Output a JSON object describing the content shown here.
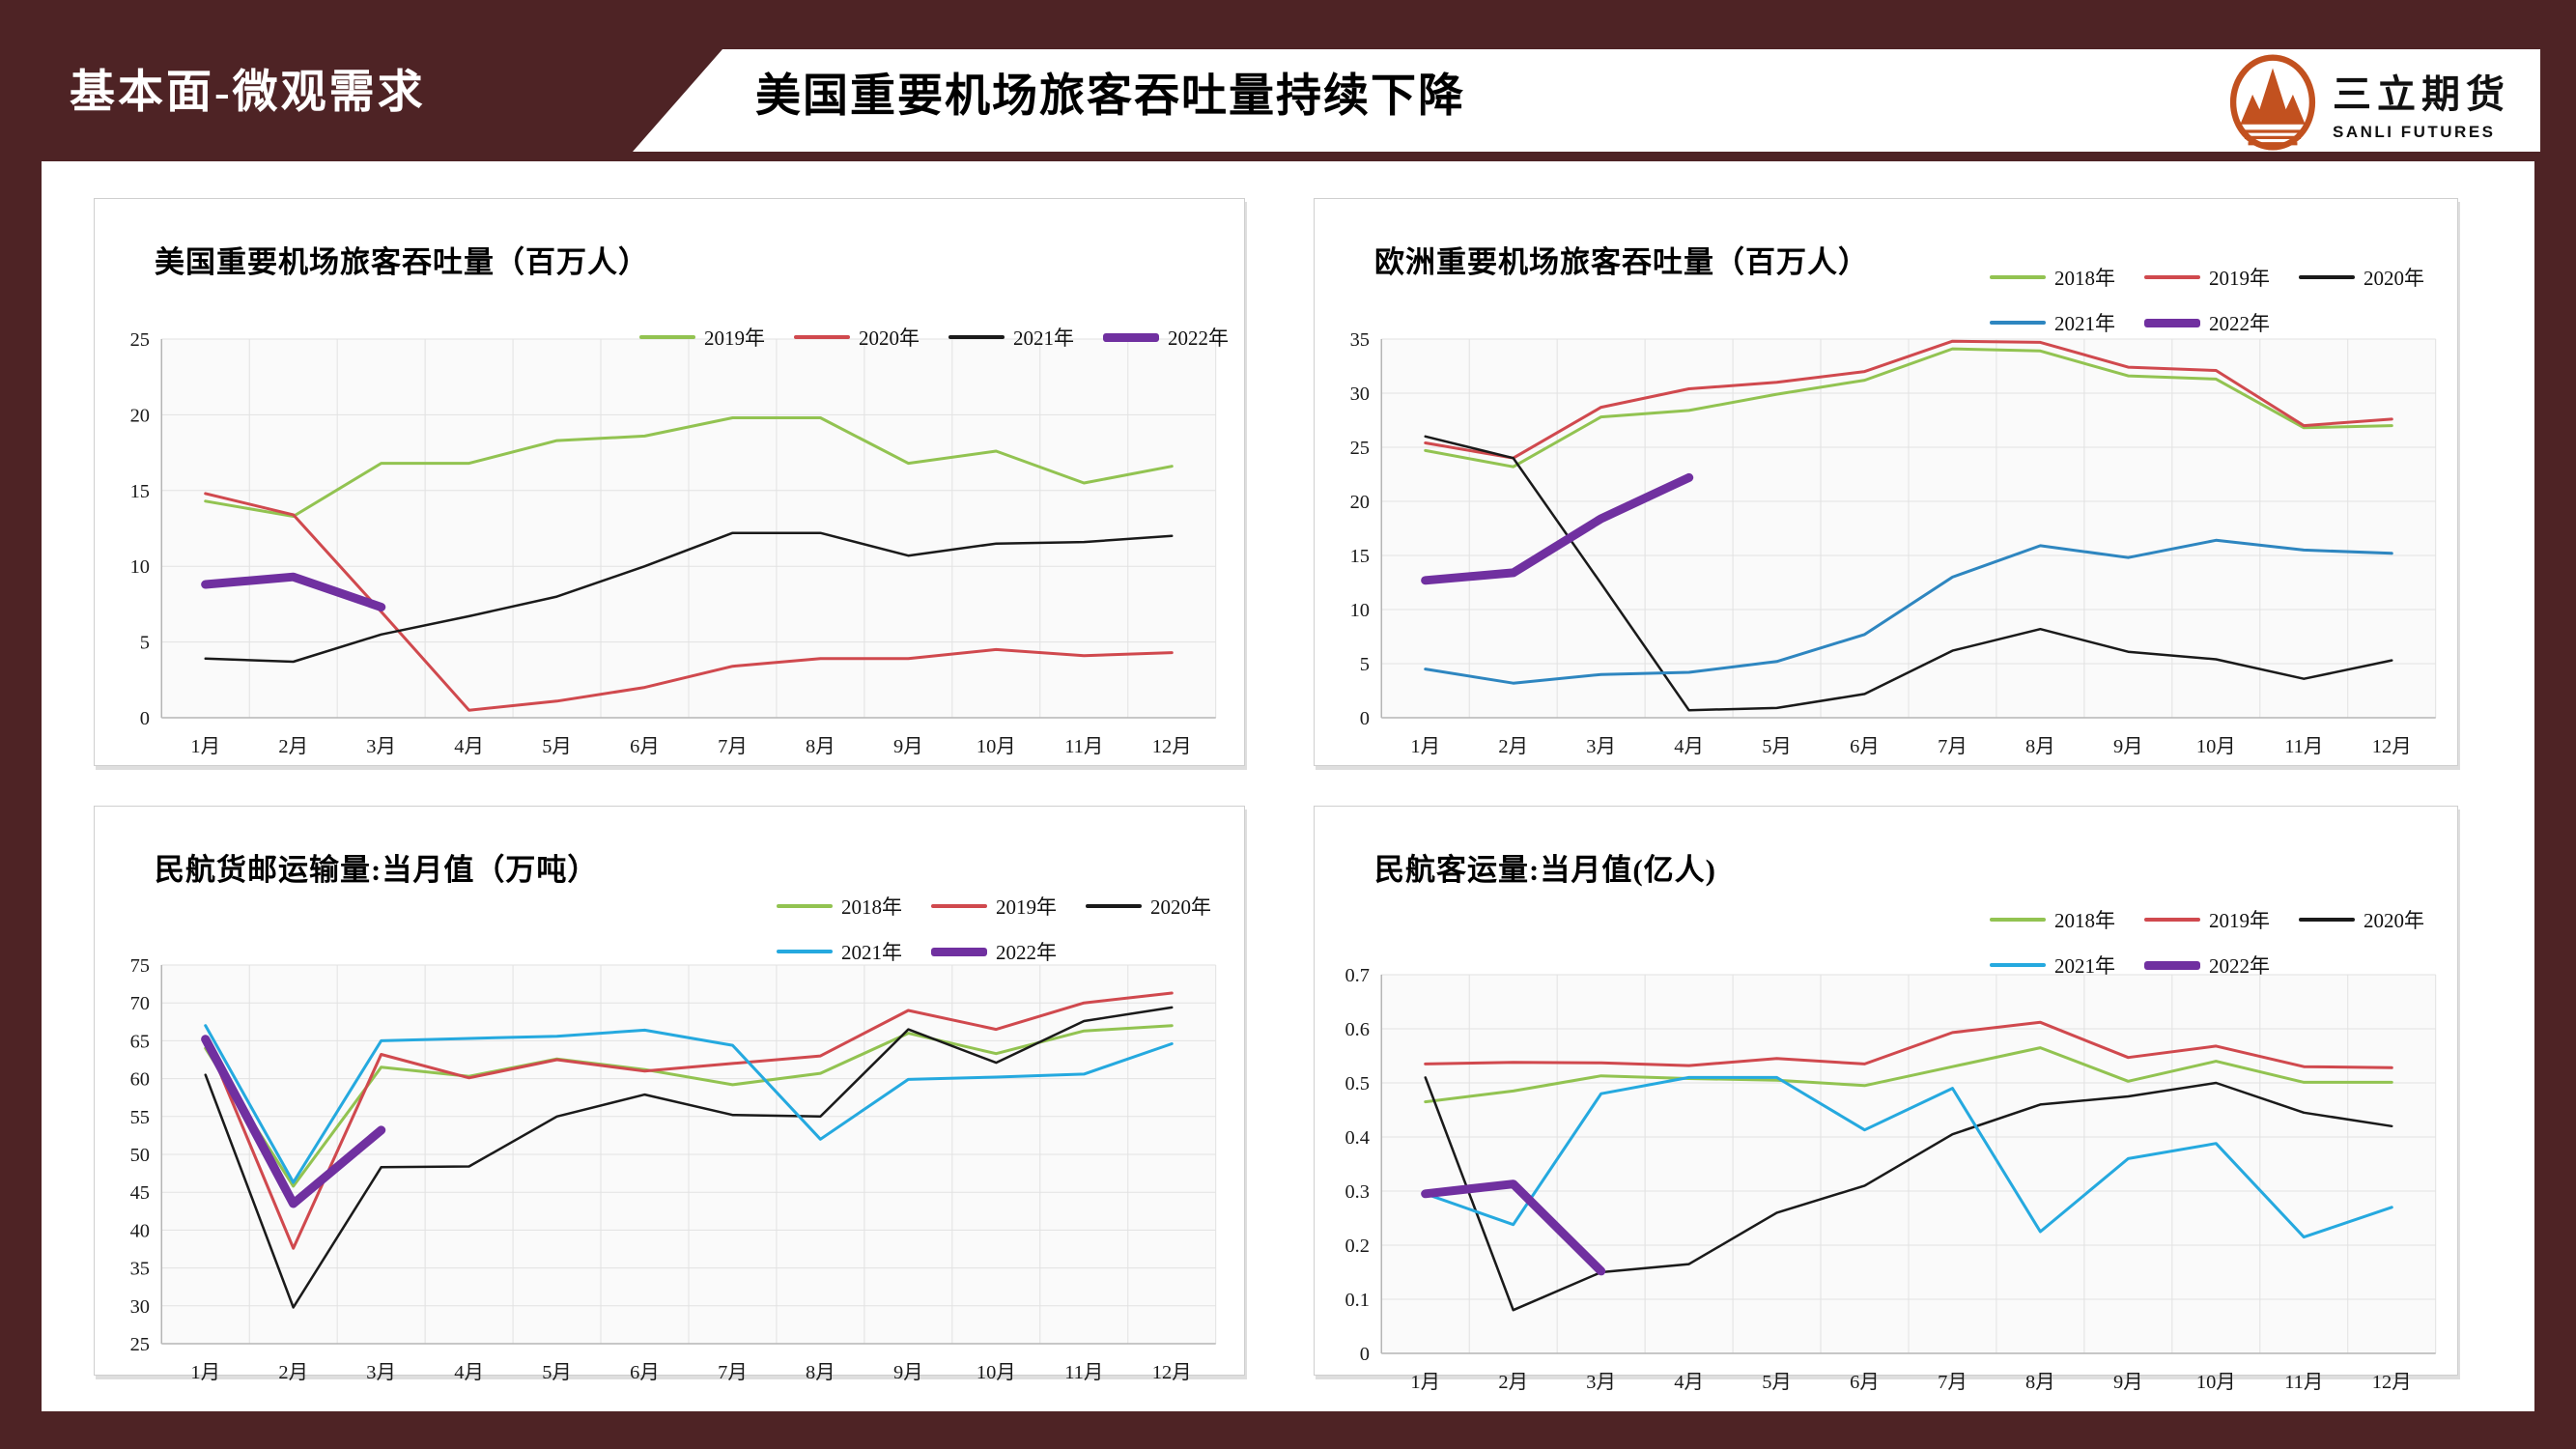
{
  "theme": {
    "frame_maroon": "#4E2325",
    "logo_orange": "#C2511F",
    "plot_bg": "#FAFAFA",
    "grid_line": "#E2E2E2",
    "axis_line": "#B5B5B5"
  },
  "header": {
    "section_tag": "基本面-微观需求",
    "title": "美国重要机场旅客吞吐量持续下降",
    "logo": {
      "cn": "三立期货",
      "en": "SANLI FUTURES"
    }
  },
  "chart_data": [
    {
      "type": "line",
      "title": "美国重要机场旅客吞吐量（百万人）",
      "categories": [
        "1月",
        "2月",
        "3月",
        "4月",
        "5月",
        "6月",
        "7月",
        "8月",
        "9月",
        "10月",
        "11月",
        "12月"
      ],
      "ylim": [
        0,
        25
      ],
      "ystep": 5,
      "grid": true,
      "legend_position": "top-right-inside",
      "legend_rows": [
        [
          "2019年",
          "2020年",
          "2021年",
          "2022年"
        ]
      ],
      "series": [
        {
          "name": "2019年",
          "color": "#92C351",
          "width": 3,
          "values": [
            14.3,
            13.3,
            16.8,
            16.8,
            18.3,
            18.6,
            19.8,
            19.8,
            16.8,
            17.6,
            15.5,
            16.6
          ]
        },
        {
          "name": "2020年",
          "color": "#D0494E",
          "width": 3,
          "values": [
            14.8,
            13.4,
            7.0,
            0.5,
            1.1,
            2.0,
            3.4,
            3.9,
            3.9,
            4.5,
            4.1,
            4.3
          ]
        },
        {
          "name": "2021年",
          "color": "#1A1A1A",
          "width": 2.5,
          "values": [
            3.9,
            3.7,
            5.5,
            6.7,
            8.0,
            10.0,
            12.2,
            12.2,
            10.7,
            11.5,
            11.6,
            12.0
          ]
        },
        {
          "name": "2022年",
          "color": "#7030A0",
          "width": 9,
          "values": [
            8.8,
            9.3,
            7.3,
            null,
            null,
            null,
            null,
            null,
            null,
            null,
            null,
            null
          ]
        }
      ]
    },
    {
      "type": "line",
      "title": "欧洲重要机场旅客吞吐量（百万人）",
      "categories": [
        "1月",
        "2月",
        "3月",
        "4月",
        "5月",
        "6月",
        "7月",
        "8月",
        "9月",
        "10月",
        "11月",
        "12月"
      ],
      "ylim": [
        0,
        35
      ],
      "ystep": 5,
      "grid": true,
      "legend_position": "top-right-above",
      "legend_rows": [
        [
          "2018年",
          "2019年",
          "2020年"
        ],
        [
          "2021年",
          "2022年"
        ]
      ],
      "series": [
        {
          "name": "2018年",
          "color": "#92C351",
          "width": 3,
          "values": [
            24.7,
            23.2,
            27.8,
            28.4,
            29.9,
            31.2,
            34.1,
            33.9,
            31.6,
            31.3,
            26.8,
            27.0
          ]
        },
        {
          "name": "2019年",
          "color": "#D0494E",
          "width": 3,
          "values": [
            25.4,
            24.0,
            28.7,
            30.4,
            31.0,
            32.0,
            34.8,
            34.7,
            32.4,
            32.1,
            27.0,
            27.6
          ]
        },
        {
          "name": "2020年",
          "color": "#1A1A1A",
          "width": 2.5,
          "values": [
            26.0,
            24.0,
            12.4,
            0.7,
            0.9,
            2.2,
            6.2,
            8.2,
            6.1,
            5.4,
            3.6,
            5.3
          ]
        },
        {
          "name": "2021年",
          "color": "#2E86C0",
          "width": 3,
          "values": [
            4.5,
            3.2,
            4.0,
            4.2,
            5.2,
            7.7,
            13.0,
            15.9,
            14.8,
            16.4,
            15.5,
            15.2
          ]
        },
        {
          "name": "2022年",
          "color": "#7030A0",
          "width": 9,
          "values": [
            12.7,
            13.4,
            18.4,
            22.2,
            null,
            null,
            null,
            null,
            null,
            null,
            null,
            null
          ]
        }
      ]
    },
    {
      "type": "line",
      "title": "民航货邮运输量:当月值（万吨）",
      "categories": [
        "1月",
        "2月",
        "3月",
        "4月",
        "5月",
        "6月",
        "7月",
        "8月",
        "9月",
        "10月",
        "11月",
        "12月"
      ],
      "ylim": [
        25,
        75
      ],
      "ystep": 5,
      "grid": true,
      "legend_position": "top-right-above",
      "legend_rows": [
        [
          "2018年",
          "2019年",
          "2020年"
        ],
        [
          "2021年",
          "2022年"
        ]
      ],
      "series": [
        {
          "name": "2018年",
          "color": "#92C351",
          "width": 3,
          "values": [
            64.0,
            45.8,
            61.5,
            60.3,
            62.6,
            61.2,
            59.2,
            60.7,
            66.0,
            63.3,
            66.3,
            67.0
          ]
        },
        {
          "name": "2019年",
          "color": "#D0494E",
          "width": 3,
          "values": [
            65.4,
            37.6,
            63.2,
            60.1,
            62.5,
            61.0,
            62.0,
            63.0,
            69.0,
            66.5,
            70.0,
            71.3
          ]
        },
        {
          "name": "2020年",
          "color": "#1A1A1A",
          "width": 2.5,
          "values": [
            60.5,
            29.8,
            48.3,
            48.4,
            55.0,
            57.9,
            55.2,
            55.0,
            66.5,
            62.1,
            67.6,
            69.4
          ]
        },
        {
          "name": "2021年",
          "color": "#25A9DF",
          "width": 3,
          "values": [
            67.0,
            46.3,
            65.0,
            65.3,
            65.6,
            66.4,
            64.4,
            52.0,
            59.9,
            60.2,
            60.6,
            64.6
          ]
        },
        {
          "name": "2022年",
          "color": "#7030A0",
          "width": 9,
          "values": [
            65.2,
            43.5,
            53.2,
            null,
            null,
            null,
            null,
            null,
            null,
            null,
            null,
            null
          ]
        }
      ]
    },
    {
      "type": "line",
      "title": "民航客运量:当月值(亿人)",
      "categories": [
        "1月",
        "2月",
        "3月",
        "4月",
        "5月",
        "6月",
        "7月",
        "8月",
        "9月",
        "10月",
        "11月",
        "12月"
      ],
      "ylim": [
        0,
        0.7
      ],
      "ystep": 0.1,
      "grid": true,
      "legend_position": "top-right-above",
      "legend_rows": [
        [
          "2018年",
          "2019年",
          "2020年"
        ],
        [
          "2021年",
          "2022年"
        ]
      ],
      "series": [
        {
          "name": "2018年",
          "color": "#92C351",
          "width": 3,
          "values": [
            0.465,
            0.485,
            0.513,
            0.508,
            0.505,
            0.495,
            0.53,
            0.565,
            0.503,
            0.54,
            0.501,
            0.501
          ]
        },
        {
          "name": "2019年",
          "color": "#D0494E",
          "width": 3,
          "values": [
            0.535,
            0.538,
            0.537,
            0.532,
            0.545,
            0.535,
            0.593,
            0.612,
            0.547,
            0.568,
            0.53,
            0.528
          ]
        },
        {
          "name": "2020年",
          "color": "#1A1A1A",
          "width": 2.5,
          "values": [
            0.51,
            0.08,
            0.15,
            0.165,
            0.26,
            0.31,
            0.405,
            0.46,
            0.475,
            0.5,
            0.445,
            0.42
          ]
        },
        {
          "name": "2021年",
          "color": "#25A9DF",
          "width": 3,
          "values": [
            0.295,
            0.238,
            0.48,
            0.51,
            0.51,
            0.413,
            0.49,
            0.225,
            0.36,
            0.388,
            0.215,
            0.27
          ]
        },
        {
          "name": "2022年",
          "color": "#7030A0",
          "width": 9,
          "values": [
            0.295,
            0.313,
            0.152,
            null,
            null,
            null,
            null,
            null,
            null,
            null,
            null,
            null
          ]
        }
      ]
    }
  ]
}
